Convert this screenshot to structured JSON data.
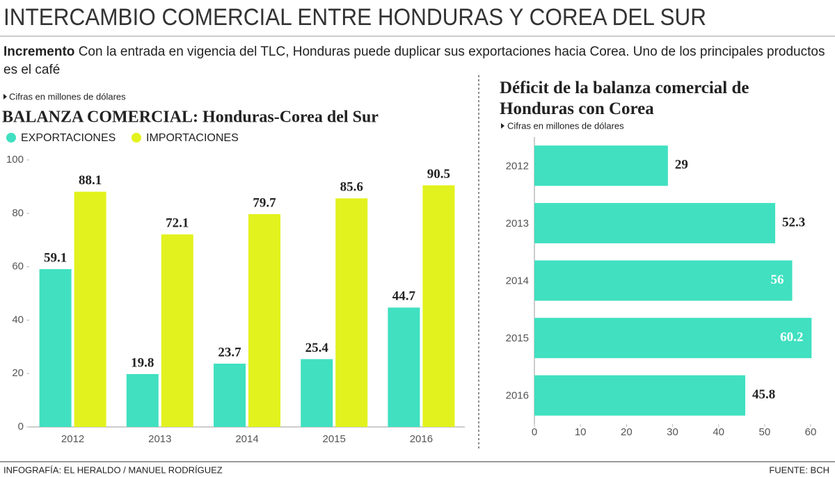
{
  "header": {
    "title": "INTERCAMBIO COMERCIAL ENTRE HONDURAS Y COREA DEL SUR",
    "lead": "Incremento",
    "text": "Con la entrada en vigencia del TLC, Honduras puede duplicar sus exportaciones hacia Corea. Uno de los principales productos es el café"
  },
  "footer": {
    "credit": "INFOGRAFÍA: EL HERALDO / MANUEL RODRÍGUEZ",
    "source": "FUENTE:  BCH"
  },
  "chart_data": [
    {
      "type": "bar",
      "note": "Cifras en millones de  dólares",
      "title": "BALANZA COMERCIAL: Honduras-Corea del Sur",
      "categories": [
        "2012",
        "2013",
        "2014",
        "2015",
        "2016"
      ],
      "series": [
        {
          "name": "EXPORTACIONES",
          "color": "#40e0c0",
          "values": [
            59.1,
            19.8,
            23.7,
            25.4,
            44.7
          ]
        },
        {
          "name": "IMPORTACIONES",
          "color": "#e2f21e",
          "values": [
            88.1,
            72.1,
            79.7,
            85.6,
            90.5
          ]
        }
      ],
      "ylim": [
        0,
        100
      ],
      "yticks": [
        0,
        20,
        40,
        60,
        80,
        100
      ],
      "grid": false
    },
    {
      "type": "hbar",
      "title": "Déficit de la balanza comercial de Honduras con Corea",
      "note": "Cifras en millones de  dólares",
      "categories": [
        "2012",
        "2013",
        "2014",
        "2015",
        "2016"
      ],
      "values": [
        29,
        52.3,
        56,
        60.2,
        45.8
      ],
      "color": "#40e0c0",
      "xlim": [
        0,
        60
      ],
      "xticks": [
        0,
        10,
        20,
        30,
        40,
        50,
        60
      ],
      "grid": false
    }
  ]
}
